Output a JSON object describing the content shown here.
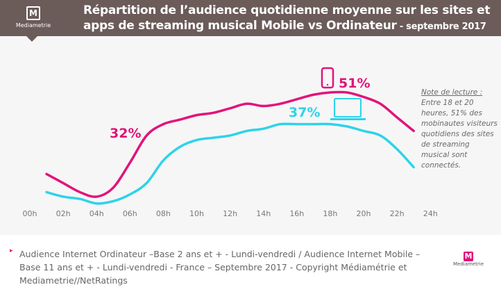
{
  "header": {
    "logo_text": "Mediametrie",
    "title_line1": "Répartition de l’audience quotidienne moyenne sur les sites et",
    "title_line2": "apps de streaming musical Mobile vs Ordinateur",
    "title_suffix": " - septembre 2017"
  },
  "note": {
    "heading": "Note de lecture :",
    "body": "Entre 18 et 20 heures, 51% des mobinautes visiteurs quotidiens des sites de streaming musical sont connectés."
  },
  "footer": {
    "text": "Audience Internet Ordinateur –Base 2 ans et + - Lundi-vendredi / Audience Internet Mobile – Base 11 ans et + - Lundi-vendredi - France – Septembre 2017 - Copyright Médiamétrie et Mediametrie//NetRatings",
    "logo_text": "Mediametrie"
  },
  "chart_data": {
    "type": "line",
    "title": "Répartition de l’audience quotidienne moyenne sur les sites et apps de streaming musical Mobile vs Ordinateur - septembre 2017",
    "x_ticks": [
      "00h",
      "02h",
      "04h",
      "06h",
      "08h",
      "10h",
      "12h",
      "14h",
      "16h",
      "18h",
      "20h",
      "22h",
      "24h"
    ],
    "xlim": [
      0,
      24
    ],
    "ylim": [
      0,
      55
    ],
    "grid": false,
    "x": [
      1,
      2,
      3,
      4,
      5,
      6,
      7,
      8,
      9,
      10,
      11,
      12,
      13,
      14,
      15,
      16,
      17,
      18,
      19,
      20,
      21,
      22,
      23
    ],
    "series": [
      {
        "icon": "smartphone-icon",
        "color": "#e2137a",
        "values": [
          15,
          11,
          7,
          5,
          9,
          20,
          32,
          37,
          39,
          41,
          42,
          44,
          46,
          45,
          46,
          48,
          50,
          51,
          51,
          49,
          46,
          40,
          34
        ]
      },
      {
        "icon": "laptop-icon",
        "color": "#2dd3ea",
        "values": [
          7,
          5,
          4,
          2,
          3,
          6,
          11,
          21,
          27,
          30,
          31,
          32,
          34,
          35,
          37,
          37,
          37,
          37,
          36,
          34,
          32,
          26,
          18
        ]
      }
    ],
    "annotations": [
      {
        "text": "32%",
        "series": 0,
        "x": 7
      },
      {
        "text": "51%",
        "series": 0,
        "x": 18.5
      },
      {
        "text": "37%",
        "series": 1,
        "x": 16
      }
    ]
  }
}
